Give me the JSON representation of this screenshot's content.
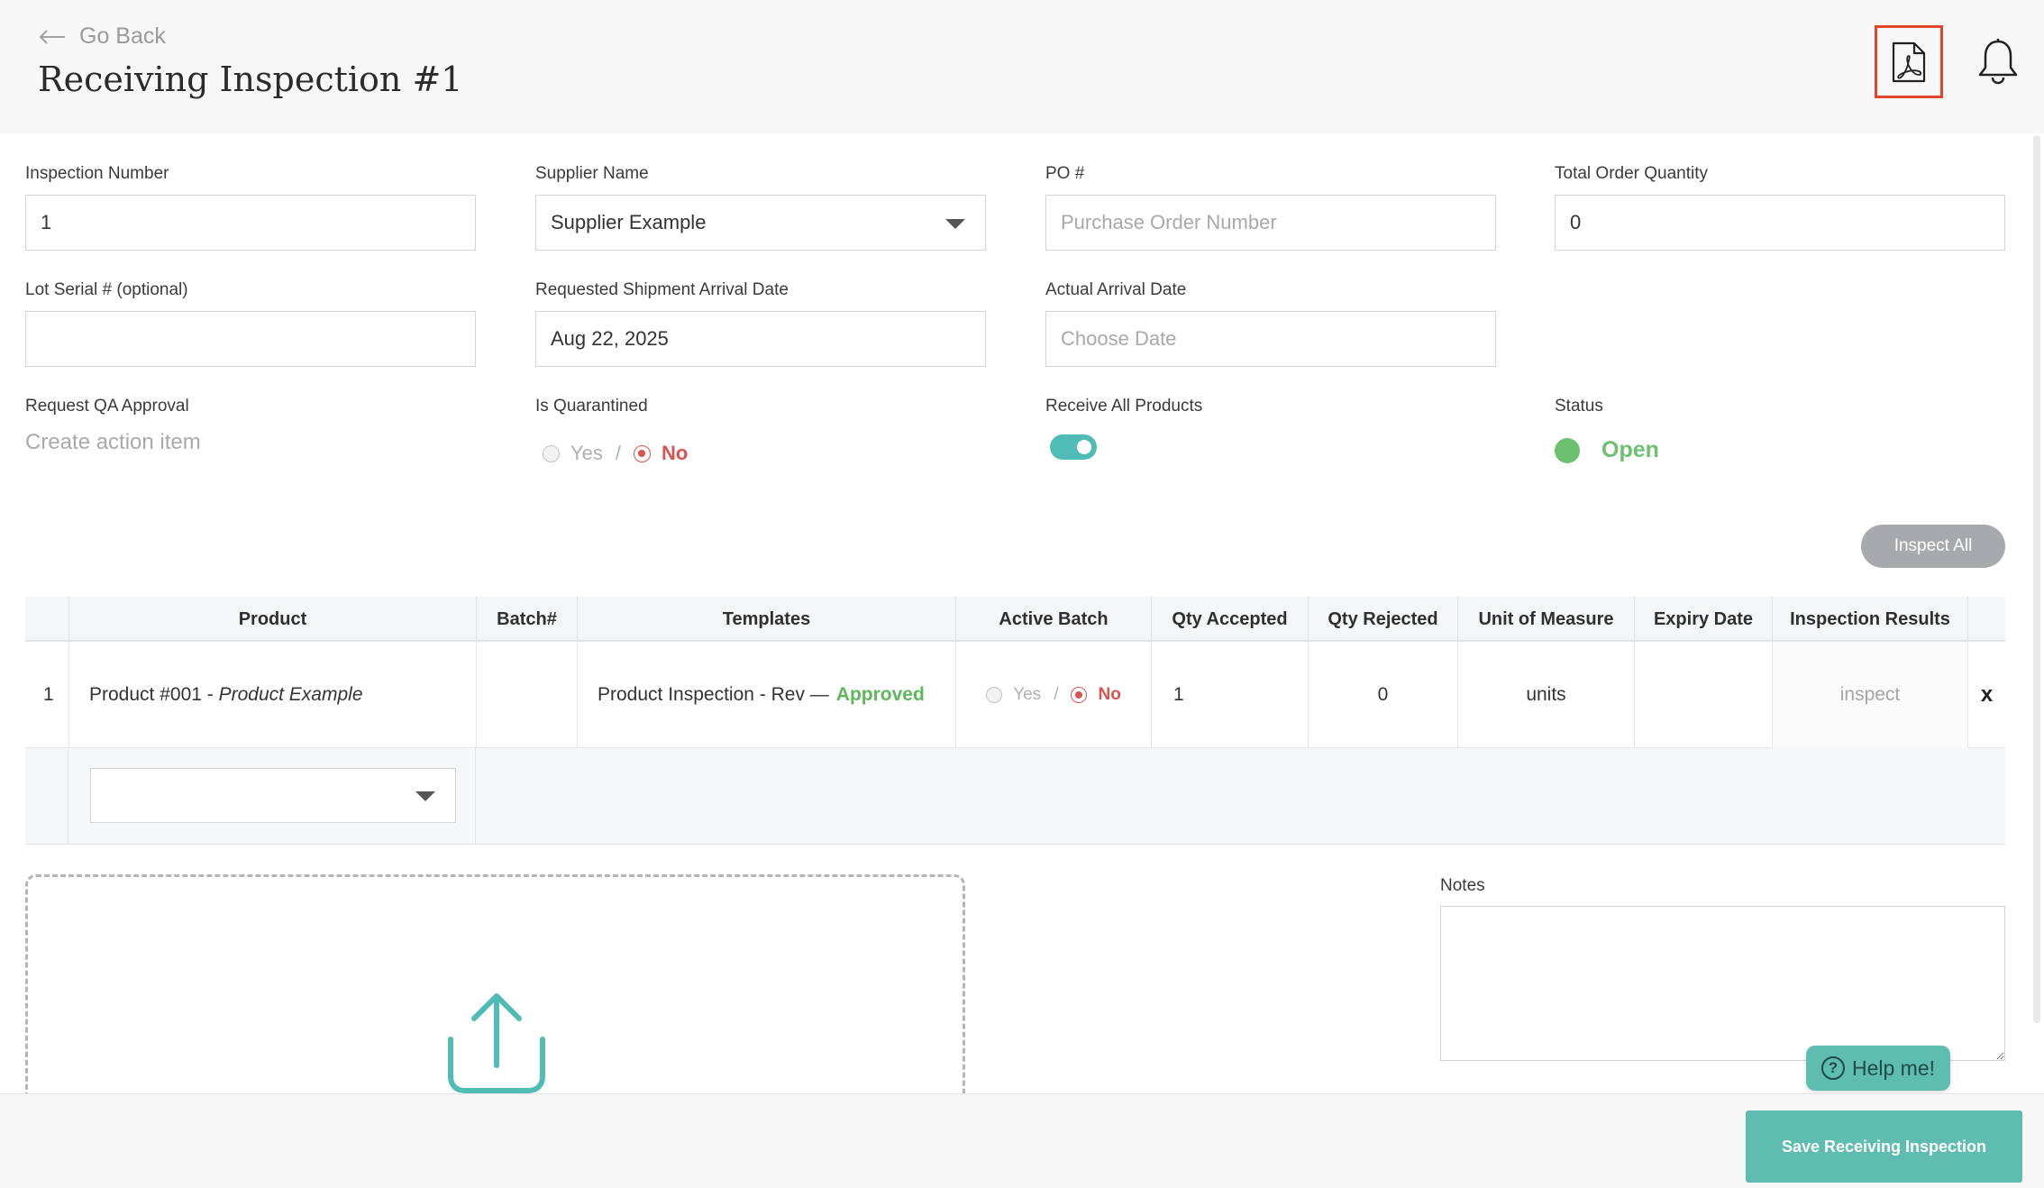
{
  "header": {
    "go_back": "Go Back",
    "title": "Receiving Inspection #1"
  },
  "form": {
    "inspection_number": {
      "label": "Inspection Number",
      "value": "1"
    },
    "supplier_name": {
      "label": "Supplier Name",
      "value": "Supplier Example"
    },
    "po": {
      "label": "PO #",
      "placeholder": "Purchase Order Number"
    },
    "total_order_quantity": {
      "label": "Total Order Quantity",
      "value": "0"
    },
    "lot_serial": {
      "label": "Lot Serial # (optional)",
      "value": ""
    },
    "requested_arrival": {
      "label": "Requested Shipment Arrival Date",
      "value": "Aug 22, 2025"
    },
    "actual_arrival": {
      "label": "Actual Arrival Date",
      "placeholder": "Choose Date"
    },
    "request_qa": {
      "label": "Request QA Approval",
      "link": "Create action item"
    },
    "is_quarantined": {
      "label": "Is Quarantined",
      "yes": "Yes",
      "sep": "/",
      "no": "No",
      "selected": "No"
    },
    "receive_all": {
      "label": "Receive All Products",
      "on": true
    },
    "status": {
      "label": "Status",
      "value": "Open",
      "color": "#6cc070"
    }
  },
  "inspect_all": "Inspect All",
  "table": {
    "headers": [
      "Product",
      "Batch#",
      "Templates",
      "Active Batch",
      "Qty Accepted",
      "Qty Rejected",
      "Unit of Measure",
      "Expiry Date",
      "Inspection Results"
    ],
    "rows": [
      {
        "index": "1",
        "product_code": "Product #001 - ",
        "product_name": "Product Example",
        "batch": "",
        "template": "Product Inspection - Rev —",
        "template_status": "Approved",
        "active_yes": "Yes",
        "active_sep": "/",
        "active_no": "No",
        "qty_accepted": "1",
        "qty_rejected": "0",
        "unit": "units",
        "expiry": "",
        "result": "inspect",
        "remove": "x"
      }
    ]
  },
  "notes": {
    "label": "Notes",
    "value": ""
  },
  "help": "Help me!",
  "save": "Save Receiving Inspection",
  "colors": {
    "accent": "#5ebcb1",
    "danger": "#d9534f",
    "success": "#5cb85c"
  }
}
